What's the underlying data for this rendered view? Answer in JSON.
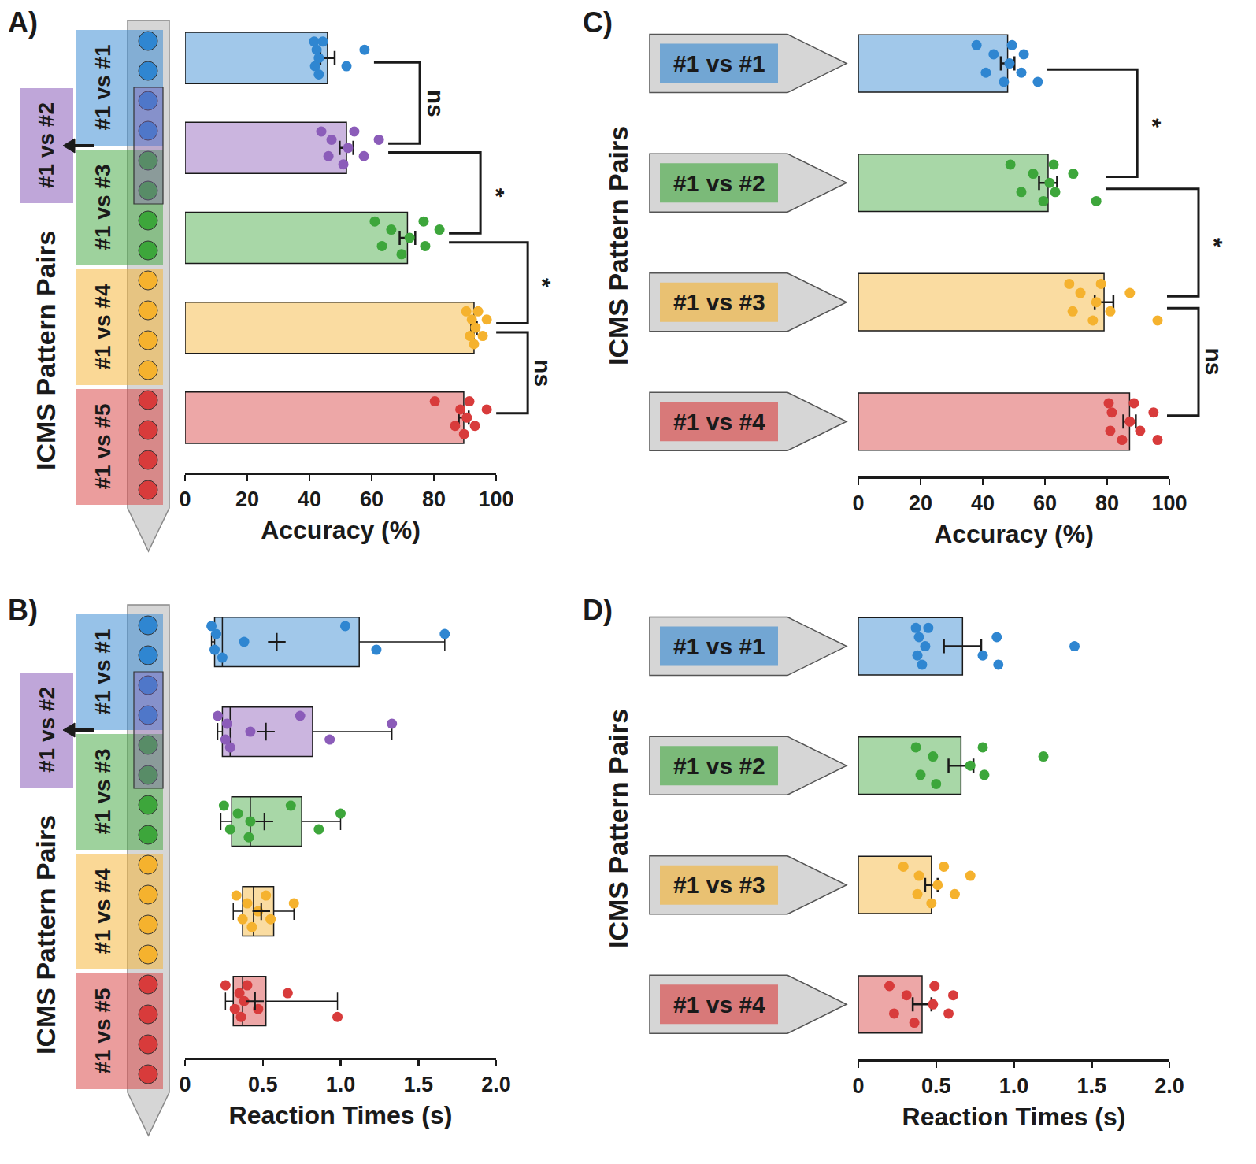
{
  "chart_data": [
    {
      "panel": "A)",
      "type": "bar",
      "orientation": "horizontal",
      "categories": [
        "#1 vs #1",
        "#1 vs #2",
        "#1 vs #3",
        "#1 vs #4",
        "#1 vs #5"
      ],
      "values": [
        45.8,
        51.9,
        71.5,
        92.9,
        89.6
      ],
      "errors": [
        2.3,
        2.2,
        2.5,
        0.9,
        1.6
      ],
      "points": [
        [
          41.5,
          41.8,
          42.3,
          43.0,
          43.0,
          44.3,
          51.9,
          57.7
        ],
        [
          43.8,
          46.1,
          47.1,
          50.9,
          52.4,
          54.4,
          57.5,
          62.3
        ],
        [
          61.0,
          63.3,
          66.3,
          69.6,
          72.2,
          76.7,
          77.2,
          81.8
        ],
        [
          90.4,
          91.6,
          92.2,
          92.9,
          93.4,
          94.2,
          95.7,
          97.0
        ],
        [
          80.3,
          86.8,
          88.5,
          89.7,
          90.6,
          91.4,
          93.2,
          97.0
        ]
      ],
      "colors": [
        "#2f86d1",
        "#8b5cb9",
        "#3da63b",
        "#f5b22e",
        "#d83b3b"
      ],
      "xlabel": "Accuracy (%)",
      "ylabel": "ICMS Pattern Pairs",
      "xlim": [
        0,
        100
      ],
      "xticks": [
        0,
        20,
        40,
        60,
        80,
        100
      ],
      "tick_labels": "x",
      "grid": false,
      "comparisons": [
        {
          "between": [
            0,
            1
          ],
          "label": "ns"
        },
        {
          "between": [
            1,
            2
          ],
          "label": "*"
        },
        {
          "between": [
            2,
            3
          ],
          "label": "*"
        },
        {
          "between": [
            3,
            4
          ],
          "label": "ns"
        }
      ]
    },
    {
      "panel": "B)",
      "type": "box",
      "orientation": "horizontal",
      "categories": [
        "#1 vs #1",
        "#1 vs #2",
        "#1 vs #3",
        "#1 vs #4",
        "#1 vs #5"
      ],
      "q1": [
        0.19,
        0.24,
        0.3,
        0.37,
        0.31
      ],
      "median": [
        0.24,
        0.29,
        0.42,
        0.44,
        0.37
      ],
      "q3": [
        1.12,
        0.82,
        0.75,
        0.57,
        0.52
      ],
      "whisker_low": [
        0.17,
        0.21,
        0.23,
        0.31,
        0.26
      ],
      "whisker_high": [
        1.67,
        1.33,
        1.0,
        0.7,
        0.98
      ],
      "means": [
        0.59,
        0.52,
        0.51,
        0.49,
        0.45
      ],
      "points": [
        [
          0.17,
          0.19,
          0.2,
          0.24,
          0.38,
          1.03,
          1.23,
          1.67
        ],
        [
          0.21,
          0.26,
          0.27,
          0.29,
          0.42,
          0.74,
          0.93,
          1.33
        ],
        [
          0.25,
          0.29,
          0.34,
          0.41,
          0.42,
          0.68,
          0.86,
          1.0
        ],
        [
          0.33,
          0.37,
          0.4,
          0.43,
          0.47,
          0.52,
          0.55,
          0.7
        ],
        [
          0.26,
          0.32,
          0.35,
          0.36,
          0.38,
          0.4,
          0.47,
          0.66,
          0.98
        ]
      ],
      "colors": [
        "#2f86d1",
        "#8b5cb9",
        "#3da63b",
        "#f5b22e",
        "#d83b3b"
      ],
      "xlabel": "Reaction Times (s)",
      "ylabel": "ICMS Pattern Pairs",
      "xlim": [
        0,
        2
      ],
      "xticks": [
        0,
        0.5,
        {
          "value": 1,
          "label": "1.0"
        },
        1.5,
        {
          "value": 2,
          "label": "2.0"
        }
      ],
      "tick_labels": "x",
      "grid": false
    },
    {
      "panel": "C)",
      "type": "bar",
      "orientation": "horizontal",
      "categories": [
        "#1 vs #1",
        "#1 vs #2",
        "#1 vs #3",
        "#1 vs #4"
      ],
      "values": [
        48.0,
        61.0,
        79.0,
        87.2
      ],
      "errors": [
        2.2,
        2.9,
        3.0,
        2.0
      ],
      "points": [
        [
          38.0,
          41.0,
          43.5,
          46.8,
          48.6,
          49.4,
          52.4,
          53.2,
          57.7
        ],
        [
          48.9,
          52.4,
          56.2,
          59.5,
          61.5,
          62.8,
          63.3,
          69.1,
          76.5
        ],
        [
          67.8,
          68.9,
          71.4,
          75.4,
          76.5,
          78.0,
          81.0,
          87.3,
          96.2
        ],
        [
          80.5,
          81.0,
          81.5,
          84.8,
          87.3,
          88.6,
          90.6,
          94.9,
          96.2
        ]
      ],
      "colors": [
        "#2f86d1",
        "#3da63b",
        "#f5b22e",
        "#d83b3b"
      ],
      "xlabel": "Accuracy (%)",
      "ylabel": "ICMS Pattern Pairs",
      "xlim": [
        0,
        100
      ],
      "xticks": [
        0,
        20,
        40,
        60,
        80,
        100
      ],
      "tick_labels": "x",
      "grid": false,
      "comparisons": [
        {
          "between": [
            0,
            1
          ],
          "label": "*"
        },
        {
          "between": [
            1,
            2
          ],
          "label": "*"
        },
        {
          "between": [
            2,
            3
          ],
          "label": "ns"
        }
      ]
    },
    {
      "panel": "D)",
      "type": "bar",
      "orientation": "horizontal",
      "categories": [
        "#1 vs #1",
        "#1 vs #2",
        "#1 vs #3",
        "#1 vs #4"
      ],
      "values": [
        0.67,
        0.66,
        0.47,
        0.41
      ],
      "errors": [
        0.12,
        0.08,
        0.04,
        0.06
      ],
      "points": [
        [
          0.37,
          0.38,
          0.39,
          0.41,
          0.43,
          0.45,
          0.8,
          0.89,
          0.9,
          1.39
        ],
        [
          0.37,
          0.4,
          0.48,
          0.5,
          0.72,
          0.8,
          0.81,
          1.19
        ],
        [
          0.29,
          0.38,
          0.39,
          0.47,
          0.51,
          0.55,
          0.62,
          0.72
        ],
        [
          0.2,
          0.23,
          0.31,
          0.36,
          0.48,
          0.49,
          0.58,
          0.61
        ]
      ],
      "colors": [
        "#2f86d1",
        "#3da63b",
        "#f5b22e",
        "#d83b3b"
      ],
      "xlabel": "Reaction Times (s)",
      "ylabel": "ICMS Pattern Pairs",
      "xlim": [
        0,
        2
      ],
      "xticks": [
        0,
        0.5,
        {
          "value": 1,
          "label": "1.0"
        },
        1.5,
        {
          "value": 2,
          "label": "2.0"
        }
      ],
      "tick_labels": "x",
      "grid": false
    }
  ]
}
